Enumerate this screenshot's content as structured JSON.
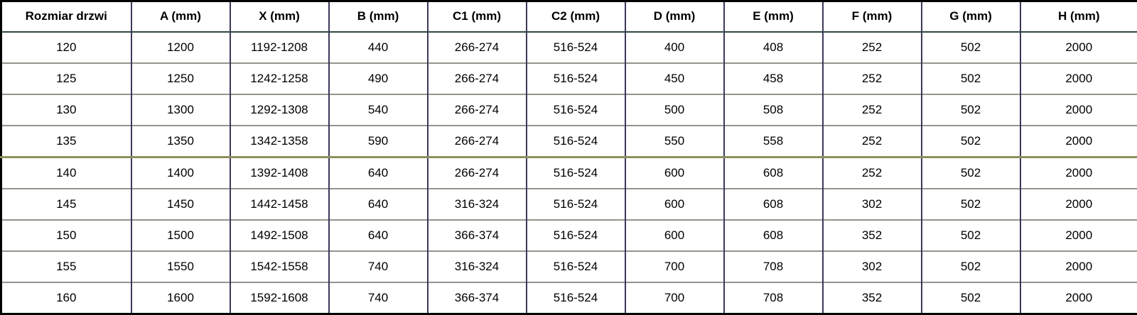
{
  "table": {
    "name": "door-dimensions-table",
    "columns": [
      "Rozmiar drzwi",
      "A (mm)",
      "X (mm)",
      "B (mm)",
      "C1 (mm)",
      "C2 (mm)",
      "D (mm)",
      "E (mm)",
      "F (mm)",
      "G (mm)",
      "H (mm)"
    ],
    "rows": [
      [
        "120",
        "1200",
        "1192-1208",
        "440",
        "266-274",
        "516-524",
        "400",
        "408",
        "252",
        "502",
        "2000"
      ],
      [
        "125",
        "1250",
        "1242-1258",
        "490",
        "266-274",
        "516-524",
        "450",
        "458",
        "252",
        "502",
        "2000"
      ],
      [
        "130",
        "1300",
        "1292-1308",
        "540",
        "266-274",
        "516-524",
        "500",
        "508",
        "252",
        "502",
        "2000"
      ],
      [
        "135",
        "1350",
        "1342-1358",
        "590",
        "266-274",
        "516-524",
        "550",
        "558",
        "252",
        "502",
        "2000"
      ],
      [
        "140",
        "1400",
        "1392-1408",
        "640",
        "266-274",
        "516-524",
        "600",
        "608",
        "252",
        "502",
        "2000"
      ],
      [
        "145",
        "1450",
        "1442-1458",
        "640",
        "316-324",
        "516-524",
        "600",
        "608",
        "302",
        "502",
        "2000"
      ],
      [
        "150",
        "1500",
        "1492-1508",
        "640",
        "366-374",
        "516-524",
        "600",
        "608",
        "352",
        "502",
        "2000"
      ],
      [
        "155",
        "1550",
        "1542-1558",
        "740",
        "316-324",
        "516-524",
        "700",
        "708",
        "302",
        "502",
        "2000"
      ],
      [
        "160",
        "1600",
        "1592-1608",
        "740",
        "366-374",
        "516-524",
        "700",
        "708",
        "352",
        "502",
        "2000"
      ]
    ],
    "accent_divider_before_row_index": 4,
    "colors": {
      "border_outer": "#000000",
      "border_vertical": "#39395c",
      "border_horizontal": "#94948c",
      "border_accent": "#8f8f5f",
      "header_separator": "#2e4747",
      "text": "#000000",
      "background": "#ffffff"
    }
  }
}
